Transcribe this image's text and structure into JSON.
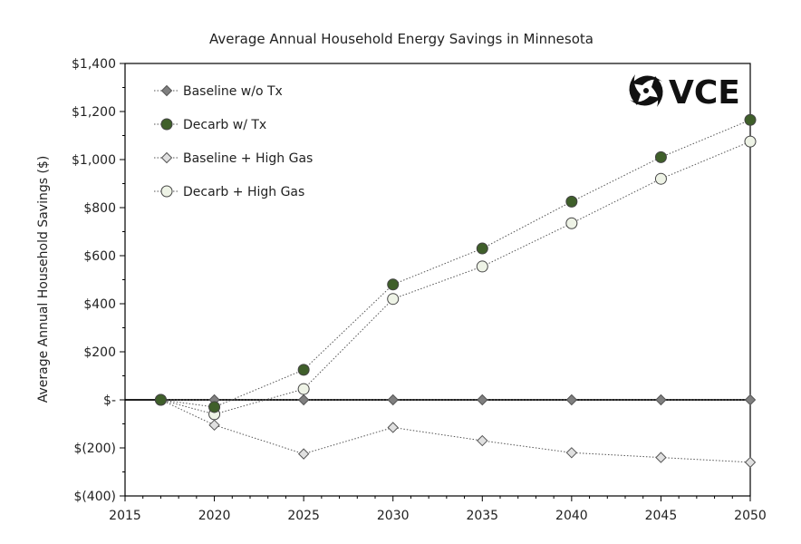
{
  "chart_data": {
    "type": "line",
    "title": "Average Annual Household Energy Savings in Minnesota",
    "ylabel": "Average Annual Household Savings ($)",
    "xlabel": "",
    "x": [
      2017,
      2020,
      2025,
      2030,
      2035,
      2040,
      2045,
      2050
    ],
    "xlim": [
      2015,
      2050
    ],
    "ylim": [
      -400,
      1400
    ],
    "x_ticks": [
      "2015",
      "2020",
      "2025",
      "2030",
      "2035",
      "2040",
      "2045",
      "2050"
    ],
    "y_ticks": [
      "$(400)",
      "$(200)",
      "$-",
      "$200",
      "$400",
      "$600",
      "$800",
      "$1,000",
      "$1,200",
      "$1,400"
    ],
    "legend_position": "top-left",
    "grid": false,
    "series": [
      {
        "name": "Baseline w/o Tx",
        "marker": "diamond",
        "color": "#7f7f7f",
        "values": [
          0,
          0,
          0,
          0,
          0,
          0,
          0,
          0
        ]
      },
      {
        "name": "Decarb w/ Tx",
        "marker": "circle",
        "color": "#3f5f2a",
        "values": [
          0,
          -30,
          125,
          480,
          630,
          825,
          1010,
          1165
        ]
      },
      {
        "name": "Baseline + High Gas",
        "marker": "diamond",
        "color": "#e0e0e0",
        "values": [
          0,
          -105,
          -225,
          -115,
          -170,
          -220,
          -240,
          -260
        ]
      },
      {
        "name": "Decarb + High Gas",
        "marker": "circle",
        "color": "#eef3e6",
        "values": [
          0,
          -60,
          45,
          420,
          555,
          735,
          920,
          1075
        ]
      }
    ]
  },
  "logo": {
    "text": "VCE"
  }
}
